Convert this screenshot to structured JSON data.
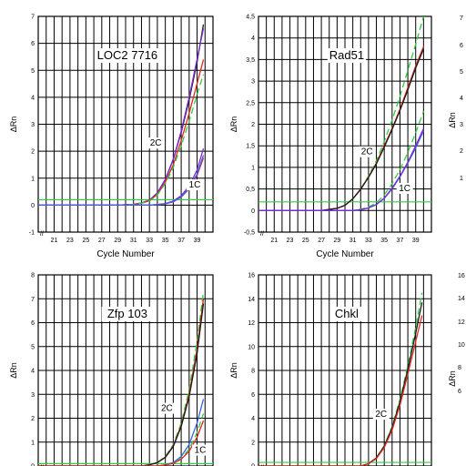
{
  "chart_data": [
    {
      "type": "line",
      "title": "LOC2 7716",
      "xlabel": "Cycle Number",
      "ylabel": "ΔRn",
      "xlim": [
        19,
        41
      ],
      "ylim": [
        -1,
        7
      ],
      "xticks": [
        21,
        23,
        25,
        27,
        29,
        31,
        33,
        35,
        37,
        39
      ],
      "yticks": [
        -1,
        0,
        1,
        2,
        3,
        4,
        5,
        6,
        7
      ],
      "threshold": 0.2,
      "annotations": [
        {
          "text": "2C",
          "x": 33.8,
          "y": 2.2
        },
        {
          "text": "1C",
          "x": 38.7,
          "y": 0.65
        }
      ],
      "series": [
        {
          "color": "#1a1a1a",
          "x": [
            19,
            29,
            31,
            32,
            33,
            34,
            35,
            36,
            37,
            38,
            39,
            39.8
          ],
          "y": [
            0,
            0,
            0.03,
            0.08,
            0.18,
            0.45,
            0.95,
            1.7,
            2.7,
            3.9,
            5.3,
            6.7
          ]
        },
        {
          "color": "#7a2ad6",
          "x": [
            19,
            29,
            31,
            32,
            33,
            34,
            35,
            36,
            37,
            38,
            39,
            39.8
          ],
          "y": [
            0,
            0,
            0.03,
            0.08,
            0.18,
            0.45,
            0.95,
            1.7,
            2.75,
            4.0,
            5.4,
            6.55
          ]
        },
        {
          "color": "#e0281e",
          "x": [
            19,
            29,
            31,
            32,
            33,
            34,
            35,
            36,
            37,
            38,
            39,
            39.8
          ],
          "y": [
            0,
            0,
            0.03,
            0.07,
            0.16,
            0.4,
            0.85,
            1.5,
            2.4,
            3.4,
            4.5,
            5.4
          ]
        },
        {
          "color": "#2ecc40",
          "dashed": true,
          "x": [
            19,
            29,
            31,
            32,
            33,
            34,
            35,
            36,
            37,
            38,
            39,
            39.8
          ],
          "y": [
            0,
            0,
            0.03,
            0.07,
            0.15,
            0.38,
            0.8,
            1.4,
            2.2,
            3.1,
            4.1,
            4.85
          ]
        },
        {
          "color": "#7a2ad6",
          "x": [
            19,
            33,
            34,
            35,
            36,
            37,
            38,
            39,
            39.8
          ],
          "y": [
            0,
            0,
            0.02,
            0.06,
            0.15,
            0.35,
            0.7,
            1.3,
            2.1
          ]
        },
        {
          "color": "#e0281e",
          "x": [
            19,
            33,
            34,
            35,
            36,
            37,
            38,
            39,
            39.8
          ],
          "y": [
            0,
            0,
            0.02,
            0.05,
            0.12,
            0.3,
            0.6,
            1.1,
            1.75
          ]
        },
        {
          "color": "#3a63e8",
          "x": [
            19,
            33,
            34,
            35,
            36,
            37,
            38,
            39,
            39.8
          ],
          "y": [
            0,
            0,
            0.02,
            0.05,
            0.13,
            0.3,
            0.62,
            1.15,
            1.85
          ]
        }
      ]
    },
    {
      "type": "line",
      "title": "Rad51",
      "xlabel": "Cycle Number",
      "ylabel": "ΔRn",
      "xlim": [
        19,
        41
      ],
      "ylim": [
        -0.5,
        4.5
      ],
      "xticks": [
        21,
        23,
        25,
        27,
        29,
        31,
        33,
        35,
        37,
        39
      ],
      "yticks": [
        -0.5,
        0,
        0.5,
        1,
        1.5,
        2,
        2.5,
        3,
        3.5,
        4,
        4.5
      ],
      "ytick_labels": [
        "-0,5",
        "0",
        "0,5",
        "1",
        "1,5",
        "2",
        "2,5",
        "3",
        "3,5",
        "4",
        "4,5"
      ],
      "threshold": 0.2,
      "annotations": [
        {
          "text": "2C",
          "x": 32.8,
          "y": 1.3
        },
        {
          "text": "1C",
          "x": 37.6,
          "y": 0.45
        }
      ],
      "series": [
        {
          "color": "#2ecc40",
          "dashed": true,
          "x": [
            19,
            27,
            29,
            30,
            31,
            32,
            33,
            34,
            35,
            36,
            37,
            38,
            39,
            40
          ],
          "y": [
            0,
            0,
            0.05,
            0.12,
            0.27,
            0.5,
            0.8,
            1.15,
            1.6,
            2.1,
            2.65,
            3.25,
            3.85,
            4.5
          ]
        },
        {
          "color": "#e0281e",
          "x": [
            19,
            27,
            29,
            30,
            31,
            32,
            33,
            34,
            35,
            36,
            37,
            38,
            39,
            40
          ],
          "y": [
            0,
            0,
            0.05,
            0.12,
            0.27,
            0.5,
            0.78,
            1.1,
            1.5,
            1.9,
            2.35,
            2.85,
            3.35,
            3.8
          ]
        },
        {
          "color": "#1a1a1a",
          "x": [
            19,
            27,
            29,
            30,
            31,
            32,
            33,
            34,
            35,
            36,
            37,
            38,
            39,
            40
          ],
          "y": [
            0,
            0,
            0.05,
            0.12,
            0.27,
            0.49,
            0.77,
            1.08,
            1.47,
            1.88,
            2.32,
            2.8,
            3.3,
            3.75
          ]
        },
        {
          "color": "#2ecc40",
          "dashed": true,
          "x": [
            19,
            31,
            32,
            33,
            34,
            35,
            36,
            37,
            38,
            39,
            40
          ],
          "y": [
            0,
            0,
            0.03,
            0.08,
            0.18,
            0.36,
            0.62,
            0.95,
            1.35,
            1.8,
            2.3
          ]
        },
        {
          "color": "#3a63e8",
          "x": [
            19,
            31,
            32,
            33,
            34,
            35,
            36,
            37,
            38,
            39,
            40
          ],
          "y": [
            0,
            0,
            0.02,
            0.06,
            0.14,
            0.28,
            0.5,
            0.78,
            1.1,
            1.45,
            1.85
          ]
        },
        {
          "color": "#7a2ad6",
          "x": [
            19,
            31,
            32,
            33,
            34,
            35,
            36,
            37,
            38,
            39,
            40
          ],
          "y": [
            0,
            0,
            0.02,
            0.06,
            0.14,
            0.29,
            0.52,
            0.8,
            1.12,
            1.5,
            1.9
          ]
        }
      ]
    },
    {
      "type": "line",
      "title": "Zfp 103",
      "xlabel": "",
      "ylabel": "ΔRn",
      "xlim": [
        19,
        41
      ],
      "ylim": [
        0,
        8
      ],
      "xticks": [],
      "yticks": [
        0,
        1,
        2,
        3,
        4,
        5,
        6,
        7,
        8
      ],
      "threshold": 0.1,
      "annotations": [
        {
          "text": "2C",
          "x": 35.2,
          "y": 2.3
        },
        {
          "text": "1C",
          "x": 39.4,
          "y": 0.55
        }
      ],
      "series": [
        {
          "color": "#2ecc40",
          "dashed": true,
          "x": [
            19,
            32,
            33,
            34,
            35,
            36,
            37,
            38,
            39,
            39.8
          ],
          "y": [
            0,
            0,
            0.05,
            0.15,
            0.4,
            0.9,
            1.8,
            3.2,
            5.2,
            7.3
          ]
        },
        {
          "color": "#e0281e",
          "x": [
            19,
            32,
            33,
            34,
            35,
            36,
            37,
            38,
            39,
            39.8
          ],
          "y": [
            0,
            0,
            0.05,
            0.14,
            0.37,
            0.85,
            1.7,
            3.0,
            4.9,
            7.0
          ]
        },
        {
          "color": "#1a1a1a",
          "x": [
            19,
            32,
            33,
            34,
            35,
            36,
            37,
            38,
            39,
            39.8
          ],
          "y": [
            0,
            0,
            0.05,
            0.14,
            0.36,
            0.82,
            1.65,
            2.9,
            4.7,
            6.8
          ]
        },
        {
          "color": "#3a63e8",
          "x": [
            19,
            34,
            35,
            36,
            37,
            38,
            39,
            39.8
          ],
          "y": [
            0,
            0,
            0.05,
            0.15,
            0.4,
            0.9,
            1.8,
            2.8
          ]
        },
        {
          "color": "#2ecc40",
          "dashed": true,
          "x": [
            19,
            34,
            35,
            36,
            37,
            38,
            39,
            39.8
          ],
          "y": [
            0,
            0,
            0.04,
            0.12,
            0.32,
            0.7,
            1.4,
            2.2
          ]
        },
        {
          "color": "#e0281e",
          "x": [
            19,
            34,
            35,
            36,
            37,
            38,
            39,
            39.8
          ],
          "y": [
            0,
            0,
            0.04,
            0.11,
            0.28,
            0.62,
            1.2,
            1.9
          ]
        }
      ]
    },
    {
      "type": "line",
      "title": "Chkl",
      "xlabel": "",
      "ylabel": "ΔRn",
      "xlim": [
        19,
        41
      ],
      "ylim": [
        0,
        16
      ],
      "xticks": [],
      "yticks": [
        0,
        2,
        4,
        6,
        8,
        10,
        12,
        14,
        16
      ],
      "threshold": 0.3,
      "annotations": [
        {
          "text": "2C",
          "x": 34.6,
          "y": 4.1
        }
      ],
      "series": [
        {
          "color": "#2ecc40",
          "dashed": true,
          "x": [
            19,
            32,
            33,
            34,
            35,
            36,
            37,
            38,
            39,
            39.8
          ],
          "y": [
            0,
            0,
            0.2,
            0.7,
            1.7,
            3.3,
            5.6,
            8.4,
            11.6,
            14.5
          ]
        },
        {
          "color": "#1a1a1a",
          "x": [
            19,
            32,
            33,
            34,
            35,
            36,
            37,
            38,
            39,
            39.8
          ],
          "y": [
            0,
            0,
            0.2,
            0.68,
            1.65,
            3.2,
            5.4,
            8.1,
            11.1,
            13.7
          ]
        },
        {
          "color": "#e0281e",
          "x": [
            19,
            32,
            33,
            34,
            35,
            36,
            37,
            38,
            39,
            39.8
          ],
          "y": [
            0,
            0,
            0.18,
            0.62,
            1.55,
            3.0,
            5.1,
            7.7,
            10.4,
            12.6
          ]
        }
      ]
    }
  ],
  "third_column": {
    "ylabel": "ΔRn",
    "top_ticks": [
      "7",
      "6",
      "5",
      "4",
      "3",
      "2",
      "1"
    ],
    "bottom_ticks": [
      "16",
      "14",
      "12",
      "10",
      "8",
      "6"
    ]
  }
}
